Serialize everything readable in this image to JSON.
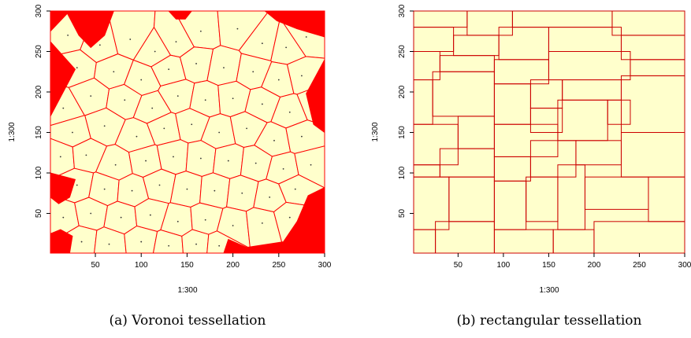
{
  "chart_data": [
    {
      "type": "heatmap",
      "title": "",
      "caption": "(a) Voronoi tessellation",
      "xlabel": "1:300",
      "ylabel": "1:300",
      "xlim": [
        1,
        300
      ],
      "ylim": [
        1,
        300
      ],
      "xticks": [
        50,
        100,
        150,
        200,
        250,
        300
      ],
      "yticks": [
        50,
        100,
        150,
        200,
        250,
        300
      ],
      "colors": {
        "fill": "#ffffcc",
        "boundary": "#ff0000"
      },
      "corner_regions": [
        [
          [
            1,
            300
          ],
          [
            1,
            275
          ],
          [
            22,
            300
          ]
        ],
        [
          [
            18,
            300
          ],
          [
            70,
            300
          ],
          [
            60,
            270
          ],
          [
            45,
            255
          ],
          [
            32,
            270
          ]
        ],
        [
          [
            1,
            262
          ],
          [
            28,
            228
          ],
          [
            22,
            215
          ],
          [
            1,
            170
          ]
        ],
        [
          [
            130,
            300
          ],
          [
            155,
            300
          ],
          [
            148,
            290
          ],
          [
            138,
            290
          ]
        ],
        [
          [
            235,
            300
          ],
          [
            300,
            300
          ],
          [
            300,
            268
          ],
          [
            270,
            278
          ],
          [
            248,
            288
          ]
        ],
        [
          [
            280,
            198
          ],
          [
            300,
            240
          ],
          [
            300,
            150
          ],
          [
            288,
            160
          ]
        ],
        [
          [
            1,
            70
          ],
          [
            1,
            100
          ],
          [
            28,
            92
          ],
          [
            22,
            70
          ],
          [
            10,
            62
          ]
        ],
        [
          [
            1,
            1
          ],
          [
            1,
            25
          ],
          [
            12,
            30
          ],
          [
            25,
            22
          ],
          [
            22,
            1
          ]
        ],
        [
          [
            190,
            1
          ],
          [
            300,
            1
          ],
          [
            300,
            82
          ],
          [
            282,
            72
          ],
          [
            270,
            40
          ],
          [
            255,
            15
          ],
          [
            215,
            8
          ],
          [
            195,
            18
          ]
        ]
      ],
      "voronoi_points": [
        [
          20,
          270
        ],
        [
          55,
          258
        ],
        [
          88,
          265
        ],
        [
          115,
          250
        ],
        [
          138,
          262
        ],
        [
          165,
          275
        ],
        [
          205,
          278
        ],
        [
          232,
          260
        ],
        [
          258,
          255
        ],
        [
          280,
          268
        ],
        [
          30,
          230
        ],
        [
          70,
          225
        ],
        [
          100,
          215
        ],
        [
          130,
          228
        ],
        [
          160,
          235
        ],
        [
          190,
          230
        ],
        [
          222,
          225
        ],
        [
          250,
          215
        ],
        [
          275,
          220
        ],
        [
          15,
          180
        ],
        [
          45,
          195
        ],
        [
          82,
          190
        ],
        [
          112,
          180
        ],
        [
          140,
          195
        ],
        [
          170,
          190
        ],
        [
          200,
          192
        ],
        [
          232,
          185
        ],
        [
          262,
          175
        ],
        [
          290,
          185
        ],
        [
          25,
          150
        ],
        [
          60,
          158
        ],
        [
          95,
          145
        ],
        [
          125,
          155
        ],
        [
          155,
          160
        ],
        [
          185,
          150
        ],
        [
          215,
          155
        ],
        [
          245,
          140
        ],
        [
          275,
          145
        ],
        [
          12,
          120
        ],
        [
          40,
          122
        ],
        [
          72,
          110
        ],
        [
          105,
          115
        ],
        [
          135,
          120
        ],
        [
          165,
          118
        ],
        [
          195,
          115
        ],
        [
          225,
          112
        ],
        [
          255,
          105
        ],
        [
          285,
          110
        ],
        [
          30,
          85
        ],
        [
          60,
          80
        ],
        [
          90,
          78
        ],
        [
          120,
          85
        ],
        [
          150,
          80
        ],
        [
          180,
          78
        ],
        [
          210,
          75
        ],
        [
          240,
          70
        ],
        [
          268,
          80
        ],
        [
          15,
          45
        ],
        [
          45,
          50
        ],
        [
          78,
          45
        ],
        [
          110,
          48
        ],
        [
          140,
          40
        ],
        [
          170,
          42
        ],
        [
          200,
          35
        ],
        [
          232,
          38
        ],
        [
          262,
          45
        ],
        [
          290,
          40
        ],
        [
          35,
          15
        ],
        [
          65,
          12
        ],
        [
          100,
          15
        ],
        [
          130,
          10
        ],
        [
          160,
          12
        ],
        [
          185,
          10
        ]
      ]
    },
    {
      "type": "heatmap",
      "title": "",
      "caption": "(b) rectangular tessellation",
      "xlabel": "1:300",
      "ylabel": "1:300",
      "xlim": [
        1,
        300
      ],
      "ylim": [
        1,
        300
      ],
      "xticks": [
        50,
        100,
        150,
        200,
        250,
        300
      ],
      "yticks": [
        50,
        100,
        150,
        200,
        250,
        300
      ],
      "colors": {
        "fill": "#ffffcc",
        "boundary": "#cc0000"
      },
      "rectangles": [
        [
          1,
          280,
          60,
          300
        ],
        [
          60,
          270,
          110,
          300
        ],
        [
          110,
          280,
          220,
          300
        ],
        [
          220,
          270,
          300,
          300
        ],
        [
          1,
          250,
          45,
          280
        ],
        [
          45,
          245,
          95,
          270
        ],
        [
          95,
          240,
          150,
          280
        ],
        [
          150,
          250,
          230,
          280
        ],
        [
          230,
          240,
          300,
          270
        ],
        [
          1,
          215,
          30,
          250
        ],
        [
          30,
          225,
          90,
          245
        ],
        [
          90,
          210,
          150,
          240
        ],
        [
          150,
          215,
          240,
          250
        ],
        [
          240,
          220,
          300,
          240
        ],
        [
          1,
          160,
          22,
          215
        ],
        [
          22,
          170,
          90,
          225
        ],
        [
          90,
          160,
          130,
          210
        ],
        [
          130,
          180,
          165,
          215
        ],
        [
          165,
          190,
          230,
          215
        ],
        [
          230,
          150,
          300,
          220
        ],
        [
          1,
          110,
          50,
          160
        ],
        [
          50,
          130,
          90,
          170
        ],
        [
          90,
          120,
          160,
          160
        ],
        [
          160,
          140,
          215,
          190
        ],
        [
          215,
          160,
          240,
          190
        ],
        [
          130,
          150,
          165,
          180
        ],
        [
          1,
          95,
          30,
          110
        ],
        [
          30,
          95,
          90,
          130
        ],
        [
          90,
          90,
          130,
          120
        ],
        [
          130,
          95,
          180,
          140
        ],
        [
          180,
          110,
          230,
          140
        ],
        [
          230,
          95,
          300,
          150
        ],
        [
          1,
          30,
          40,
          95
        ],
        [
          40,
          40,
          90,
          95
        ],
        [
          90,
          30,
          125,
          90
        ],
        [
          125,
          40,
          160,
          95
        ],
        [
          160,
          30,
          190,
          110
        ],
        [
          190,
          55,
          260,
          95
        ],
        [
          260,
          40,
          300,
          95
        ],
        [
          1,
          1,
          25,
          30
        ],
        [
          25,
          1,
          90,
          40
        ],
        [
          90,
          1,
          155,
          30
        ],
        [
          155,
          1,
          200,
          30
        ],
        [
          200,
          1,
          300,
          40
        ]
      ]
    }
  ]
}
